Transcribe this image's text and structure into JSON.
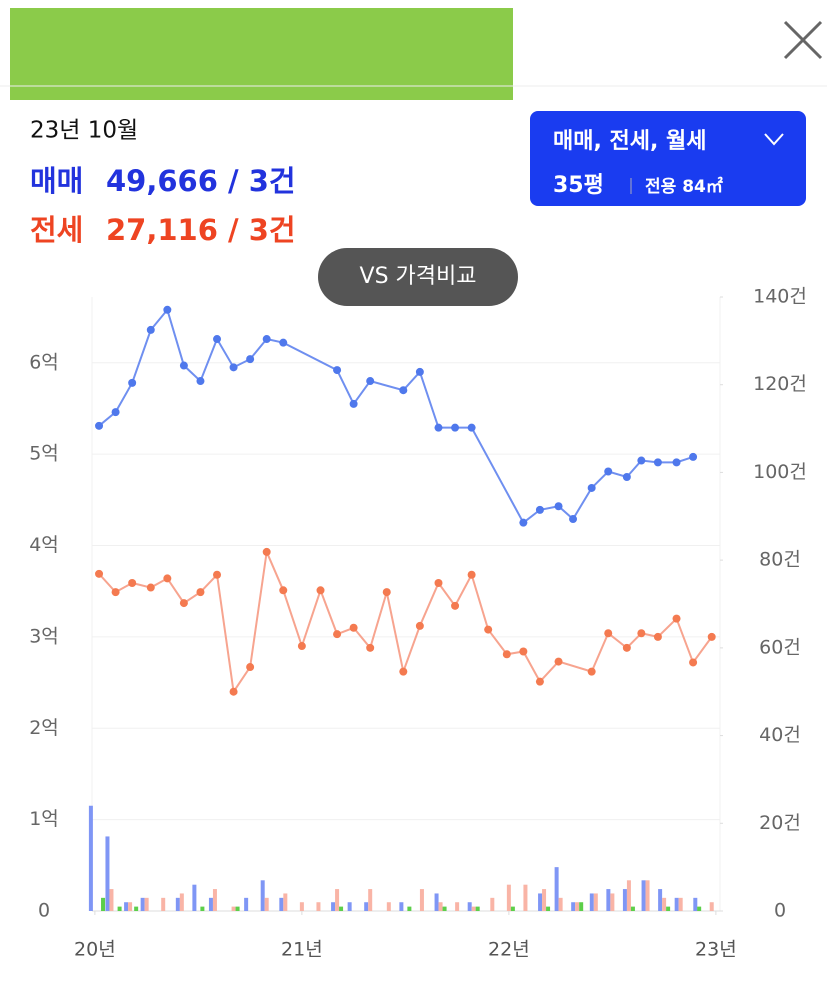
{
  "summary": {
    "date": "23년 10월",
    "sale_label": "매매",
    "sale_value": "49,666 / 3건",
    "jeonse_label": "전세",
    "jeonse_value": "27,116 / 3건"
  },
  "filter": {
    "types": "매매, 전세, 월세",
    "size": "35평",
    "area": "전용 84㎡"
  },
  "compare_button": "VS 가격비교",
  "chart_data": {
    "type": "line",
    "grid": true,
    "xlim": [
      19.986,
      23.02
    ],
    "xticks": [
      {
        "value": 20,
        "label": "20년"
      },
      {
        "value": 21,
        "label": "21년"
      },
      {
        "value": 22,
        "label": "22년"
      },
      {
        "value": 23,
        "label": "23년"
      }
    ],
    "ylim": [
      0,
      6.72
    ],
    "yticks": [
      0,
      {
        "value": 1,
        "label": "1억"
      },
      {
        "value": 2,
        "label": "2억"
      },
      {
        "value": 3,
        "label": "3억"
      },
      {
        "value": 4,
        "label": "4억"
      },
      {
        "value": 5,
        "label": "5억"
      },
      {
        "value": 6,
        "label": "6억"
      }
    ],
    "y2lim": [
      0,
      140
    ],
    "y2ticks": [
      0,
      {
        "value": 20,
        "label": "20건"
      },
      {
        "value": 40,
        "label": "40건"
      },
      {
        "value": 60,
        "label": "60건"
      },
      {
        "value": 80,
        "label": "80건"
      },
      {
        "value": 100,
        "label": "100건"
      },
      {
        "value": 120,
        "label": "120건"
      },
      {
        "value": 140,
        "label": "140건"
      }
    ],
    "series": [
      {
        "type": "line",
        "color": "#6f8ff0",
        "marker_color": "#4f78ec",
        "x": [
          20.02,
          20.1,
          20.18,
          20.27,
          20.35,
          20.43,
          20.51,
          20.59,
          20.67,
          20.75,
          20.83,
          20.91,
          21.17,
          21.25,
          21.33,
          21.49,
          21.57,
          21.66,
          21.74,
          21.82,
          22.07,
          22.15,
          22.24,
          22.31,
          22.4,
          22.48,
          22.57,
          22.64,
          22.72,
          22.81,
          22.89
        ],
        "values": [
          5.31,
          5.46,
          5.78,
          6.36,
          6.58,
          5.97,
          5.8,
          6.26,
          5.95,
          6.04,
          6.26,
          6.22,
          5.92,
          5.55,
          5.8,
          5.7,
          5.9,
          5.29,
          5.29,
          5.29,
          4.25,
          4.39,
          4.43,
          4.29,
          4.63,
          4.81,
          4.75,
          4.93,
          4.91,
          4.91,
          4.97
        ]
      },
      {
        "type": "line",
        "color": "#f7a48f",
        "marker_color": "#f47a50",
        "x": [
          20.02,
          20.1,
          20.18,
          20.27,
          20.35,
          20.43,
          20.51,
          20.59,
          20.67,
          20.75,
          20.83,
          20.91,
          21.0,
          21.09,
          21.17,
          21.25,
          21.33,
          21.41,
          21.49,
          21.57,
          21.66,
          21.74,
          21.82,
          21.9,
          21.99,
          22.07,
          22.15,
          22.24,
          22.4,
          22.48,
          22.57,
          22.64,
          22.72,
          22.81,
          22.89,
          22.98
        ],
        "values": [
          3.69,
          3.49,
          3.59,
          3.54,
          3.64,
          3.37,
          3.49,
          3.68,
          2.4,
          2.67,
          3.93,
          3.51,
          2.9,
          3.51,
          3.03,
          3.1,
          2.88,
          3.49,
          2.62,
          3.12,
          3.59,
          3.34,
          3.68,
          3.08,
          2.81,
          2.84,
          2.51,
          2.73,
          2.62,
          3.04,
          2.88,
          3.04,
          3.0,
          3.2,
          2.72,
          3.0
        ]
      },
      {
        "type": "bar",
        "axis": "y2",
        "color": "#7f96f5",
        "x": [
          20.0,
          20.08,
          20.17,
          20.25,
          20.42,
          20.5,
          20.58,
          20.75,
          20.83,
          20.92,
          21.17,
          21.25,
          21.33,
          21.5,
          21.67,
          21.83,
          22.17,
          22.25,
          22.33,
          22.42,
          22.5,
          22.58,
          22.67,
          22.75,
          22.83,
          22.92
        ],
        "values": [
          24,
          17,
          2,
          3,
          3,
          6,
          3,
          3,
          7,
          3,
          2,
          2,
          2,
          2,
          4,
          2,
          4,
          10,
          2,
          4,
          5,
          5,
          7,
          5,
          3,
          3
        ]
      },
      {
        "type": "bar",
        "axis": "y2",
        "color": "#f9b4a6",
        "x": [
          20.08,
          20.17,
          20.25,
          20.33,
          20.42,
          20.58,
          20.67,
          20.83,
          20.92,
          21.0,
          21.08,
          21.17,
          21.33,
          21.42,
          21.58,
          21.67,
          21.75,
          21.83,
          21.92,
          22.0,
          22.08,
          22.17,
          22.25,
          22.33,
          22.42,
          22.5,
          22.58,
          22.67,
          22.75,
          22.83,
          22.98
        ],
        "values": [
          5,
          2,
          3,
          3,
          4,
          5,
          1,
          3,
          4,
          2,
          2,
          5,
          5,
          2,
          5,
          2,
          2,
          1,
          3,
          6,
          6,
          5,
          3,
          2,
          4,
          4,
          7,
          7,
          3,
          3,
          2
        ]
      },
      {
        "type": "bar",
        "axis": "y2",
        "color": "#5ccf4a",
        "x": [
          20.02,
          20.1,
          20.18,
          20.5,
          20.67,
          21.17,
          21.5,
          21.67,
          21.83,
          22.0,
          22.17,
          22.33,
          22.58,
          22.75,
          22.9
        ],
        "values": [
          3,
          1,
          1,
          1,
          1,
          1,
          1,
          1,
          1,
          1,
          1,
          2,
          1,
          1,
          1
        ]
      }
    ]
  }
}
